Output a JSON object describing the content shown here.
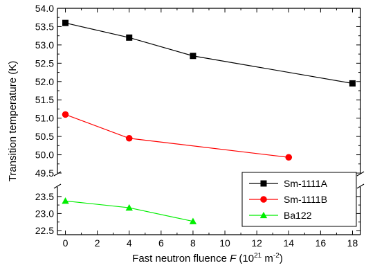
{
  "chart_data": {
    "type": "line",
    "xlabel_prefix": "Fast neutron fluence ",
    "xlabel_var": "F",
    "xlabel_unit_open": " (10",
    "xlabel_unit_exp1": "21",
    "xlabel_unit_mid": " m",
    "xlabel_unit_exp2": "-2",
    "xlabel_unit_close": ")",
    "ylabel": "Transition temperature (K)",
    "xlim": [
      -0.5,
      18.5
    ],
    "x_ticks": [
      0,
      2,
      4,
      6,
      8,
      10,
      12,
      14,
      16,
      18
    ],
    "x_tick_labels": [
      "0",
      "2",
      "4",
      "6",
      "8",
      "10",
      "12",
      "14",
      "16",
      "18"
    ],
    "y_axis_break": true,
    "upper_ylim": [
      49.5,
      54.0
    ],
    "upper_y_ticks": [
      49.5,
      50.0,
      50.5,
      51.0,
      51.5,
      52.0,
      52.5,
      53.0,
      53.5,
      54.0
    ],
    "upper_y_tick_labels": [
      "49.5",
      "50.0",
      "50.5",
      "51.0",
      "51.5",
      "52.0",
      "52.5",
      "53.0",
      "53.5",
      "54.0"
    ],
    "lower_ylim": [
      22.5,
      23.7
    ],
    "lower_y_ticks": [
      22.5,
      23.0,
      23.5
    ],
    "lower_y_tick_labels": [
      "22.5",
      "23.0",
      "23.5"
    ],
    "legend_position": "bottom-right",
    "series": [
      {
        "name": "Sm-1111A",
        "color": "#000000",
        "marker": "square",
        "panel": "upper",
        "x": [
          0,
          4,
          8,
          18
        ],
        "y": [
          53.6,
          53.2,
          52.7,
          51.95
        ]
      },
      {
        "name": "Sm-1111B",
        "color": "#ff0000",
        "marker": "circle",
        "panel": "upper",
        "x": [
          0,
          4,
          14
        ],
        "y": [
          51.1,
          50.45,
          49.93
        ]
      },
      {
        "name": "Ba122",
        "color": "#00ee00",
        "marker": "triangle",
        "panel": "lower",
        "x": [
          0,
          4,
          8
        ],
        "y": [
          23.37,
          23.17,
          22.77
        ]
      }
    ]
  }
}
